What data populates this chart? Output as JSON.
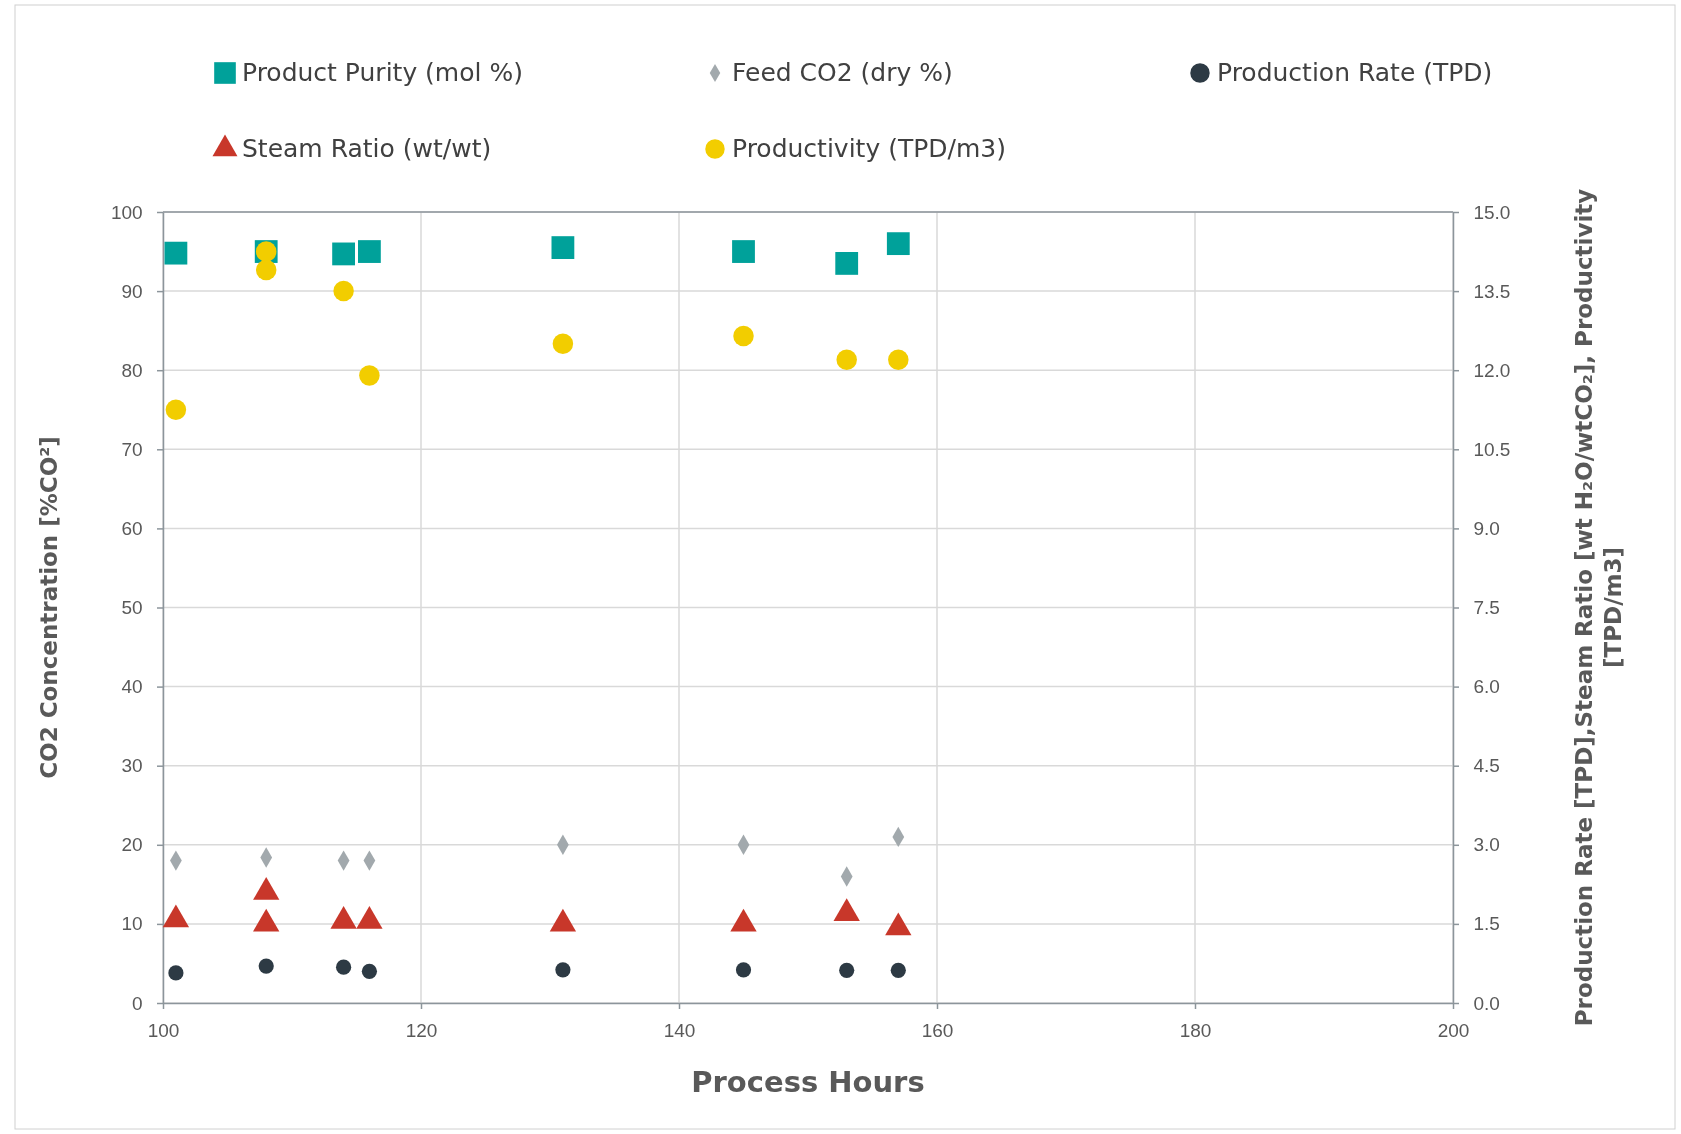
{
  "chart_data": {
    "type": "scatter",
    "xlabel": "Process Hours",
    "ylabel": "CO2 Concentration [%CO²]",
    "y2label": "Production Rate [TPD],Steam Ratio [wt H₂O/wtCO₂], Productivity [TPD/m3]",
    "xlim": [
      100,
      200
    ],
    "xticks": [
      100,
      120,
      140,
      160,
      180,
      200
    ],
    "ylim": [
      0,
      100
    ],
    "yticks": [
      0,
      10,
      20,
      30,
      40,
      50,
      60,
      70,
      80,
      90,
      100
    ],
    "y2lim": [
      0,
      15
    ],
    "y2ticks": [
      {
        "value": 0,
        "label": "0.0"
      },
      {
        "value": 1.5,
        "label": "1.5"
      },
      {
        "value": 3,
        "label": "3.0"
      },
      {
        "value": 4.5,
        "label": "4.5"
      },
      {
        "value": 6,
        "label": "6.0"
      },
      {
        "value": 7.5,
        "label": "7.5"
      },
      {
        "value": 9,
        "label": "9.0"
      },
      {
        "value": 10.5,
        "label": "10.5"
      },
      {
        "value": 12,
        "label": "12.0"
      },
      {
        "value": 13.5,
        "label": "13.5"
      },
      {
        "value": 15,
        "label": "15.0"
      }
    ],
    "grid": true,
    "legend": "top",
    "series": [
      {
        "name": "Product Purity (mol %)",
        "color": "#00a19a",
        "marker": "square",
        "x": [
          101,
          108,
          114,
          116,
          131,
          145,
          153,
          157
        ],
        "values": [
          94.8,
          95,
          94.7,
          95,
          95.5,
          95,
          93.5,
          96
        ]
      },
      {
        "name": "Feed CO2 (dry %)",
        "color": "#a2a9ad",
        "marker": "diamond",
        "x": [
          101,
          108,
          114,
          116,
          131,
          145,
          153,
          157
        ],
        "values": [
          18,
          18.4,
          18,
          18,
          20,
          20,
          16,
          21
        ]
      },
      {
        "name": "Production Rate (TPD)",
        "color": "#2d3a44",
        "marker": "circle",
        "axis": "y2",
        "x": [
          101,
          108,
          114,
          116,
          131,
          145,
          153,
          157
        ],
        "values": [
          0.57,
          0.7,
          0.68,
          0.6,
          0.63,
          0.63,
          0.62,
          0.62
        ]
      },
      {
        "name": "Steam Ratio (wt/wt)",
        "color": "#c8372a",
        "marker": "triangle",
        "axis": "y2",
        "x": [
          101,
          108,
          108,
          114,
          116,
          131,
          145,
          153,
          157
        ],
        "values": [
          1.58,
          2.1,
          1.5,
          1.55,
          1.55,
          1.5,
          1.5,
          1.7,
          1.43
        ]
      },
      {
        "name": "Productivity (TPD/m3)",
        "color": "#f2cd00",
        "marker": "circle",
        "axis": "y2",
        "x": [
          101,
          108,
          108,
          114,
          116,
          131,
          145,
          153,
          157
        ],
        "values": [
          11.25,
          14.25,
          13.9,
          13.5,
          11.9,
          12.5,
          12.65,
          12.2,
          12.2
        ]
      }
    ]
  }
}
